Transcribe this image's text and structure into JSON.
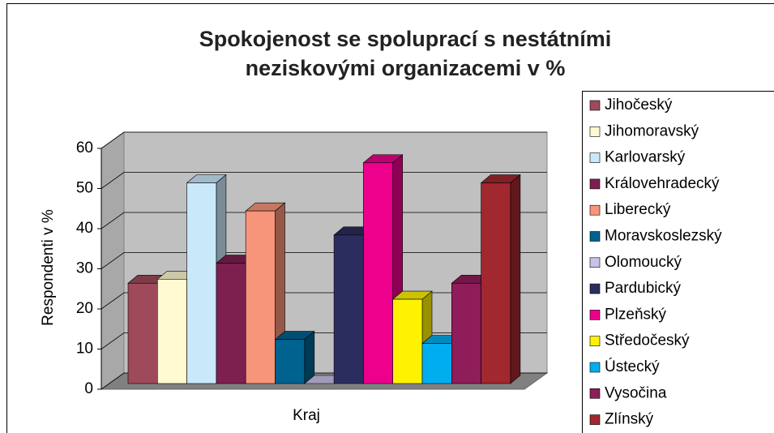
{
  "chart_data": {
    "type": "bar3d",
    "title": "Spokojenost se spoluprací s nestátními neziskovými organizacemi v %",
    "categories": [
      "Kraj"
    ],
    "ylabel": "Respondenti v %",
    "ylim": [
      0,
      60
    ],
    "yticks": [
      0,
      10,
      20,
      30,
      40,
      50,
      60
    ],
    "grid": true,
    "legend": "right",
    "series": [
      {
        "name": "Jihočeský",
        "color": "#9e4a5a",
        "values": [
          25
        ]
      },
      {
        "name": "Jihomoravský",
        "color": "#fffad2",
        "values": [
          26
        ]
      },
      {
        "name": "Karlovarský",
        "color": "#c9e9fb",
        "values": [
          50
        ]
      },
      {
        "name": "Královehradecký",
        "color": "#7d2050",
        "values": [
          30
        ]
      },
      {
        "name": "Liberecký",
        "color": "#f7957a",
        "values": [
          43
        ]
      },
      {
        "name": "Moravskoslezský",
        "color": "#00628f",
        "values": [
          11
        ]
      },
      {
        "name": "Olomoucký",
        "color": "#c9c2e8",
        "values": [
          0
        ]
      },
      {
        "name": "Pardubický",
        "color": "#2c2d5f",
        "values": [
          37
        ]
      },
      {
        "name": "Plzeňský",
        "color": "#ec008c",
        "values": [
          55
        ]
      },
      {
        "name": "Středočeský",
        "color": "#fff200",
        "values": [
          21
        ]
      },
      {
        "name": "Ústecký",
        "color": "#00aeef",
        "values": [
          10
        ]
      },
      {
        "name": "Vysočina",
        "color": "#8e1d5a",
        "values": [
          25
        ]
      },
      {
        "name": "Zlínský",
        "color": "#a0282e",
        "values": [
          50
        ]
      }
    ]
  }
}
